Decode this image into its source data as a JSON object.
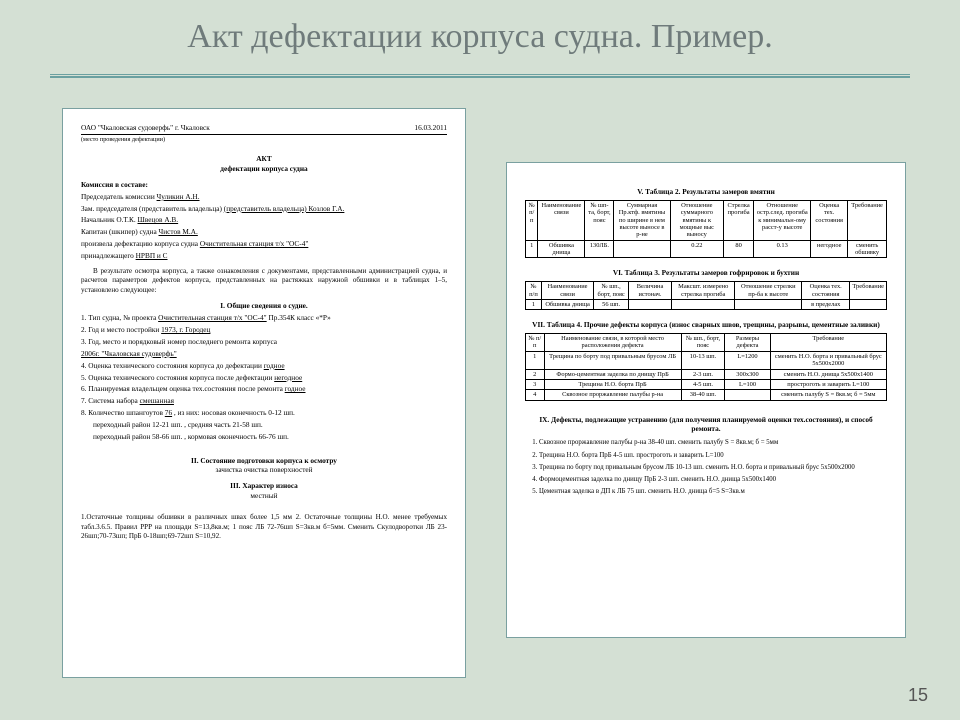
{
  "slide": {
    "title": "Акт дефектации корпуса судна. Пример.",
    "page_number": "15",
    "background_color": "#d4e0d4",
    "rule_color": "#6aa0a0"
  },
  "left": {
    "org": "ОАО \"Чкаловская судоверфь\" г. Чкаловск",
    "org_note": "(место проведения дефектации)",
    "date": "16.03.2011",
    "act_title1": "АКТ",
    "act_title2": "дефектации корпуса судна",
    "commission_head": "Комиссия в составе:",
    "rows": [
      [
        "Председатель комиссии",
        "Чуликин А.Н."
      ],
      [
        "Зам. председателя (представитель владельца)",
        "(представитель владельца) Козлов Г.А."
      ],
      [
        "Начальник О.Т.К.",
        "Швецов А.В."
      ],
      [
        "Капитан (шкипер) судна",
        "Чистов М.А."
      ]
    ],
    "line_a": "произвела дефектацию корпуса судна",
    "line_a_u": "Очистительная станция т/х \"ОС-4\"",
    "line_b": "принадлежащего",
    "line_b_u": "НРВП и С",
    "para1": "В результате осмотра корпуса, а также ознакомления с документами, представленными администрацией судна, и расчетов параметров дефектов корпуса, представленных на растяжках наружной обшивки и в таблицах 1–5, установлено следующее:",
    "s1_title": "I. Общие сведения о судне.",
    "s1_items": [
      {
        "n": "1.",
        "label": "Тип судна, № проекта",
        "u": "Очистительная станция т/х \"ОС-4\"",
        "tail": "Пр.354К класс «*Р»"
      },
      {
        "n": "2.",
        "label": "Год и место постройки",
        "u": "1973, г. Городец",
        "tail": ""
      },
      {
        "n": "3.",
        "label": "Год, место и порядковый номер последнего ремонта корпуса",
        "u": "",
        "tail": ""
      },
      {
        "n": "",
        "label": "",
        "u": "2006г. \"Чкаловская судоверфь\"",
        "tail": ""
      },
      {
        "n": "4.",
        "label": "Оценка технического состояния корпуса до дефектации",
        "u": "годное",
        "tail": ""
      },
      {
        "n": "5.",
        "label": "Оценка технического состояния корпуса после дефектации",
        "u": "негодное",
        "tail": ""
      },
      {
        "n": "6.",
        "label": "Планируемая владельцем оценка тех.состояния после ремонта",
        "u": "годное",
        "tail": ""
      },
      {
        "n": "7.",
        "label": "Система набора",
        "u": "смешанная",
        "tail": ""
      },
      {
        "n": "8.",
        "label": "Количество шпангоутов",
        "u": "76",
        "tail": ", из них: носовая оконечность 0-12 шп."
      }
    ],
    "s1_extra": [
      "переходный район 12-21 шп. , средняя часть 21-58 шп.",
      "переходный район 58-66 шп. , кормовая оконечность 66-76 шп."
    ],
    "s2_title": "II. Состояние подготовки корпуса к осмотру",
    "s2_line": "зачистка   очистка поверхностей",
    "s3_title": "III. Характер износа",
    "s3_line": "местный",
    "bottom_para": "1.Остаточные толщины обшивки в различных швах более 1,5 мм  2. Остаточные толщины Н.О. менее требуемых табл.3.6.5. Правил РРР на площади S=13,8кв.м; 1 пояс ЛБ 72-76шп S=3кв.м б=5мм. Сменить Скулодворотки ЛБ 23-26шп;70-73шп; ПрБ 0-18шп;69-72шп S=10,92."
  },
  "right": {
    "t2_cap": "V. Таблица 2. Результаты замеров вмятин",
    "t2_head": [
      "№ п/п",
      "Наименование связи",
      "№ шп-та, борт, пояс",
      "Суммарная Пр.ктф. вмятины по ширине в нем высоте выносе в р-не",
      "Отношение суммарного вмятины к мощные выс выносу",
      "Стрелка прогиба",
      "Отношение остр.след. прогиба к минимальн-ому расст-у высоте",
      "Оценка тех. состояния",
      "Требование"
    ],
    "t2_row": [
      "1",
      "Обшивка днища",
      "130ЛБ.",
      "",
      "0.22",
      "80",
      "0.13",
      "негодное",
      "сменить обшивку"
    ],
    "t3_cap": "VI. Таблица 3. Результаты замеров гофрировок и бухтин",
    "t3_head": [
      "№ п/п",
      "Наименование связи",
      "№ шп., борт, пояс",
      "Величина истонач.",
      "Максшт. измерено стрелка прогиба",
      "Отношение стрелки пр-ба к высоте",
      "Оценка тех. состояния",
      "Требование"
    ],
    "t3_row": [
      "1",
      "Обшивка днища",
      "56 шп.",
      "",
      "",
      "",
      "в пределах",
      ""
    ],
    "t4_cap": "VII. Таблица 4. Прочие дефекты корпуса (износ сварных швов, трещины, разрывы, цементные заливки)",
    "t4_head": [
      "№ п/п",
      "Наименование связи, в которой место расположения дефекта",
      "№ шп., борт, пояс",
      "Размеры дефекта",
      "Требование"
    ],
    "t4_rows": [
      [
        "1",
        "Трещина по борту под привальным брусом ЛБ",
        "10-13 шп.",
        "L=1200",
        "сменить Н.О. борта и привальный брус 5x500x2000"
      ],
      [
        "2",
        "Формо-цементная заделка по днищу ПрБ",
        "2-3 шп.",
        "300x300",
        "сменить Н.О. днища 5x500x1400"
      ],
      [
        "3",
        "Трещина Н.О. борта ПрБ",
        "4-5 шп.",
        "L=100",
        "простроготь и заварить L=100"
      ],
      [
        "4",
        "Сквозное проржавление палубы р-на",
        "38-40 шп.",
        "",
        "сменить палубу S = 8кв.м; б = 5мм"
      ]
    ],
    "s9_cap": "IX. Дефекты, подлежащие устранению (для получения планируемой оценки тех.состояния), и способ ремонта.",
    "s9_items": [
      "Сквозное проржавление палубы р-на  38-40 шп. сменить палубу S = 8кв.м; б = 5мм",
      "Трещина Н.О. борта ПрБ  4-5 шп. простроготь и заварить L=100",
      "Трещина по борту под привальным брусом ЛБ  10-13 шп. сменить Н.О. борта и привальный брус 5x500x2000",
      "Формоцементная заделка по днищу ПрБ  2-3 шп. сменить Н.О. днища 5x500x1400",
      "Цементная заделка в ДП к ЛБ  75 шп. сменить Н.О. днища б=5 S=3кв.м"
    ]
  }
}
